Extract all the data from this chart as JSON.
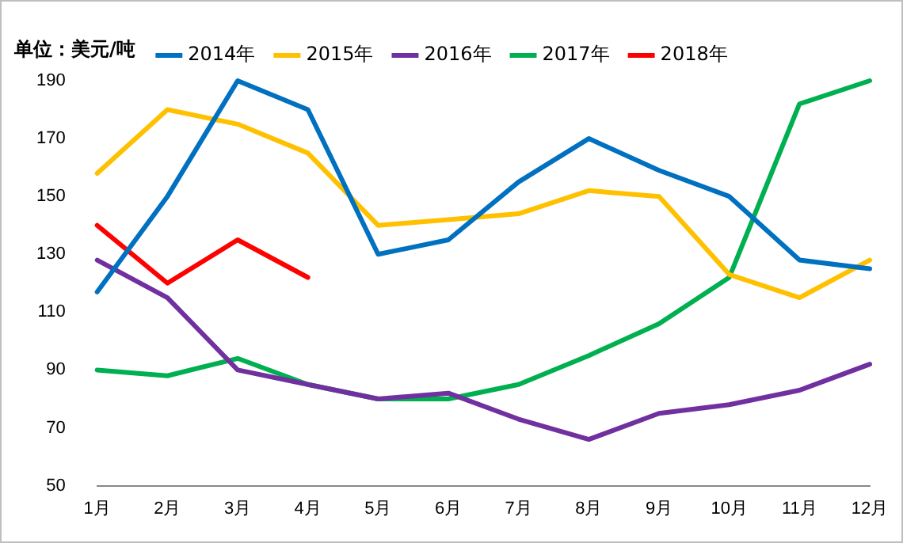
{
  "chart_data": {
    "type": "line",
    "ylabel": "单位：美元/吨",
    "categories": [
      "1月",
      "2月",
      "3月",
      "4月",
      "5月",
      "6月",
      "7月",
      "8月",
      "9月",
      "10月",
      "11月",
      "12月"
    ],
    "series": [
      {
        "name": "2014年",
        "color": "#0070c0",
        "values": [
          117,
          150,
          190,
          180,
          130,
          135,
          155,
          170,
          159,
          150,
          128,
          125
        ]
      },
      {
        "name": "2015年",
        "color": "#ffc000",
        "values": [
          158,
          180,
          175,
          165,
          140,
          142,
          144,
          152,
          150,
          123,
          115,
          128
        ]
      },
      {
        "name": "2016年",
        "color": "#7030a0",
        "values": [
          128,
          115,
          90,
          85,
          80,
          82,
          73,
          66,
          75,
          78,
          83,
          92
        ]
      },
      {
        "name": "2017年",
        "color": "#00b050",
        "values": [
          90,
          88,
          94,
          85,
          80,
          80,
          85,
          95,
          106,
          122,
          182,
          190
        ]
      },
      {
        "name": "2018年",
        "color": "#ff0000",
        "values": [
          140,
          120,
          135,
          122,
          null,
          null,
          null,
          null,
          null,
          null,
          null,
          null
        ]
      }
    ],
    "ylim": [
      50,
      190
    ],
    "yticks": [
      50,
      70,
      90,
      110,
      130,
      150,
      170,
      190
    ],
    "grid": false,
    "legend": "top",
    "marker": "none",
    "line_style": "solid"
  }
}
